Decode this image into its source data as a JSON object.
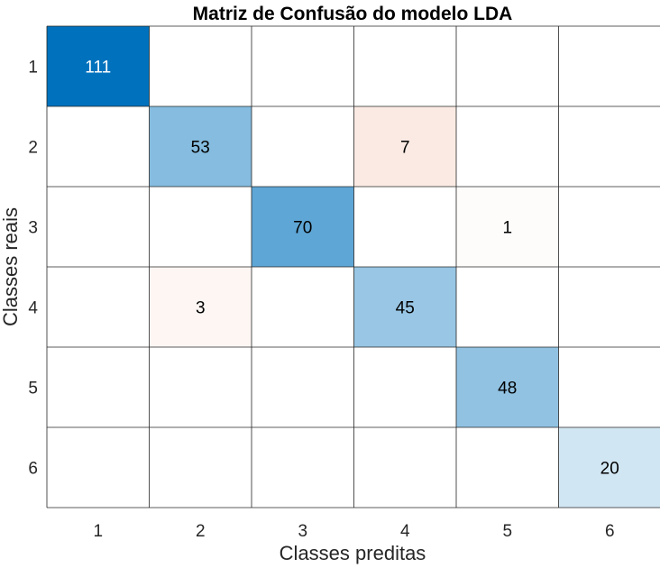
{
  "chart_data": {
    "type": "heatmap",
    "title": "Matriz de Confusão do modelo LDA",
    "xlabel": "Classes preditas",
    "ylabel": "Classes reais",
    "x_categories": [
      "1",
      "2",
      "3",
      "4",
      "5",
      "6"
    ],
    "y_categories": [
      "1",
      "2",
      "3",
      "4",
      "5",
      "6"
    ],
    "matrix": [
      [
        111,
        0,
        0,
        0,
        0,
        0
      ],
      [
        0,
        53,
        0,
        7,
        0,
        0
      ],
      [
        0,
        0,
        70,
        0,
        1,
        0
      ],
      [
        0,
        3,
        0,
        45,
        0,
        0
      ],
      [
        0,
        0,
        0,
        0,
        48,
        0
      ],
      [
        0,
        0,
        0,
        0,
        0,
        20
      ]
    ],
    "grid": true,
    "colors": {
      "diagonal_max": "#0072bd",
      "off_diagonal_max": "#d95319",
      "grid_line": "#262626",
      "background": "#ffffff"
    }
  }
}
